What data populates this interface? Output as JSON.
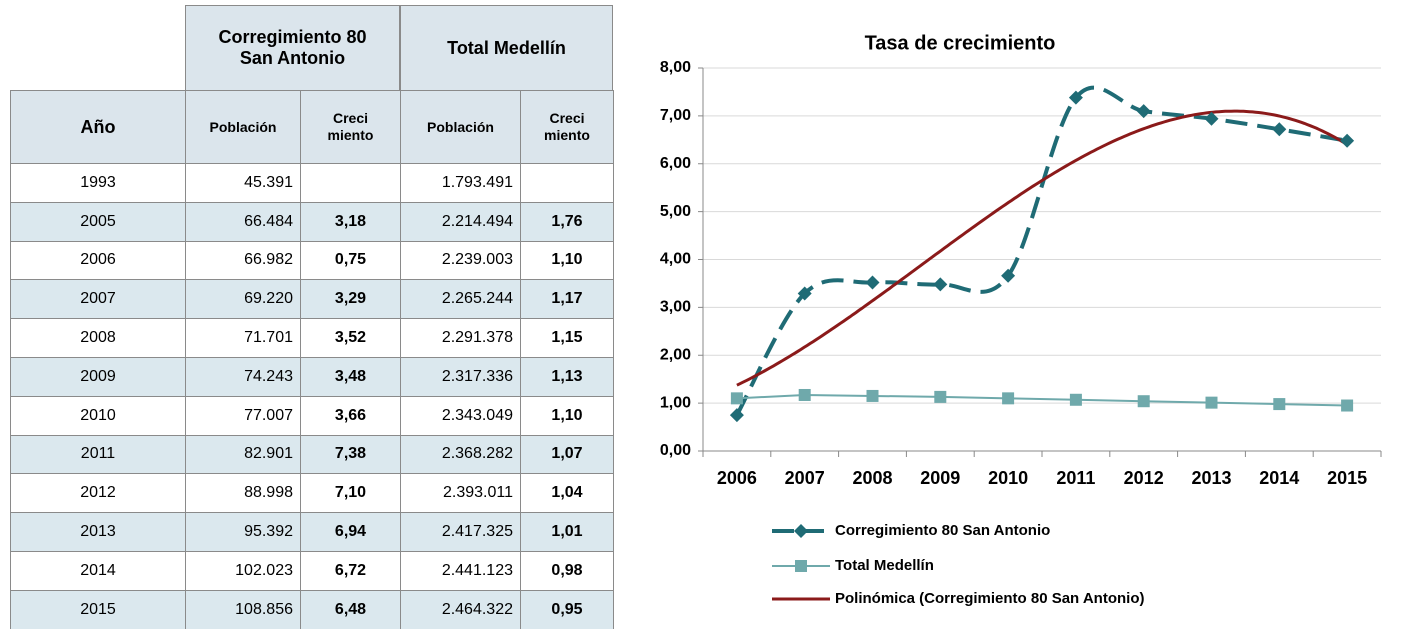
{
  "table": {
    "group_headers": [
      "Corregimiento 80\nSan Antonio",
      "Total Medellín"
    ],
    "headers": [
      "Año",
      "Población",
      "Creci\nmiento",
      "Población",
      "Creci\nmiento"
    ],
    "rows": [
      [
        "1993",
        "45.391",
        null,
        "1.793.491",
        null
      ],
      [
        "2005",
        "66.484",
        "3,18",
        "2.214.494",
        "1,76"
      ],
      [
        "2006",
        "66.982",
        "0,75",
        "2.239.003",
        "1,10"
      ],
      [
        "2007",
        "69.220",
        "3,29",
        "2.265.244",
        "1,17"
      ],
      [
        "2008",
        "71.701",
        "3,52",
        "2.291.378",
        "1,15"
      ],
      [
        "2009",
        "74.243",
        "3,48",
        "2.317.336",
        "1,13"
      ],
      [
        "2010",
        "77.007",
        "3,66",
        "2.343.049",
        "1,10"
      ],
      [
        "2011",
        "82.901",
        "7,38",
        "2.368.282",
        "1,07"
      ],
      [
        "2012",
        "88.998",
        "7,10",
        "2.393.011",
        "1,04"
      ],
      [
        "2013",
        "95.392",
        "6,94",
        "2.417.325",
        "1,01"
      ],
      [
        "2014",
        "102.023",
        "6,72",
        "2.441.123",
        "0,98"
      ],
      [
        "2015",
        "108.856",
        "6,48",
        "2.464.322",
        "0,95"
      ]
    ]
  },
  "chart_data": {
    "type": "line",
    "title": "Tasa de crecimiento",
    "categories": [
      "2006",
      "2007",
      "2008",
      "2009",
      "2010",
      "2011",
      "2012",
      "2013",
      "2014",
      "2015"
    ],
    "series": [
      {
        "name": "Corregimiento 80 San Antonio",
        "color": "#1f6b75",
        "marker": "diamond",
        "dashed": true,
        "smooth": true,
        "values": [
          0.75,
          3.29,
          3.52,
          3.48,
          3.66,
          7.38,
          7.1,
          6.94,
          6.72,
          6.48
        ]
      },
      {
        "name": "Total Medellín",
        "color": "#6fa9ab",
        "marker": "square",
        "dashed": false,
        "smooth": false,
        "values": [
          1.1,
          1.17,
          1.15,
          1.13,
          1.1,
          1.07,
          1.04,
          1.01,
          0.98,
          0.95
        ]
      }
    ],
    "trendline": {
      "name": "Polinómica (Corregimiento 80 San Antonio)",
      "color": "#8b1a1a"
    },
    "ylim": [
      0,
      8
    ],
    "yticks": [
      {
        "value": 0,
        "label": "0,00"
      },
      {
        "value": 1,
        "label": "1,00"
      },
      {
        "value": 2,
        "label": "2,00"
      },
      {
        "value": 3,
        "label": "3,00"
      },
      {
        "value": 4,
        "label": "4,00"
      },
      {
        "value": 5,
        "label": "5,00"
      },
      {
        "value": 6,
        "label": "6,00"
      },
      {
        "value": 7,
        "label": "7,00"
      },
      {
        "value": 8,
        "label": "8,00"
      }
    ],
    "grid": true,
    "legend": "bottom"
  }
}
